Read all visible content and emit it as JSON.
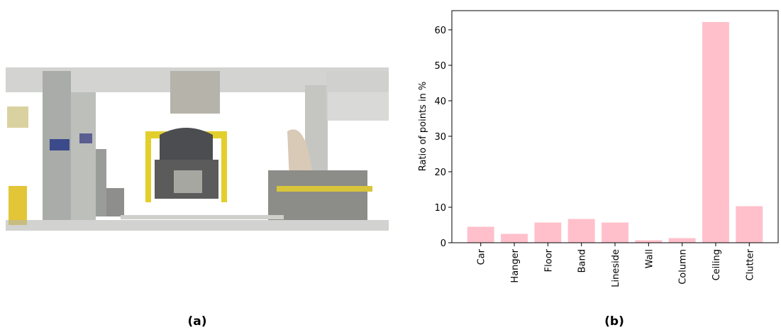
{
  "chart_data": {
    "type": "bar",
    "ylabel": "Ratio of points in %",
    "categories": [
      "Car",
      "Hanger",
      "Floor",
      "Band",
      "Lineside",
      "Wall",
      "Column",
      "Ceiling",
      "Clutter"
    ],
    "values": [
      4.5,
      2.5,
      5.7,
      6.7,
      5.7,
      0.7,
      1.3,
      62.2,
      10.3
    ],
    "color": "#ffc0cb",
    "ylim": [
      0,
      65.4
    ],
    "yticks": [
      0,
      10,
      20,
      30,
      40,
      50,
      60
    ],
    "grid": false
  },
  "captions": [
    "(a)",
    "(b)"
  ]
}
